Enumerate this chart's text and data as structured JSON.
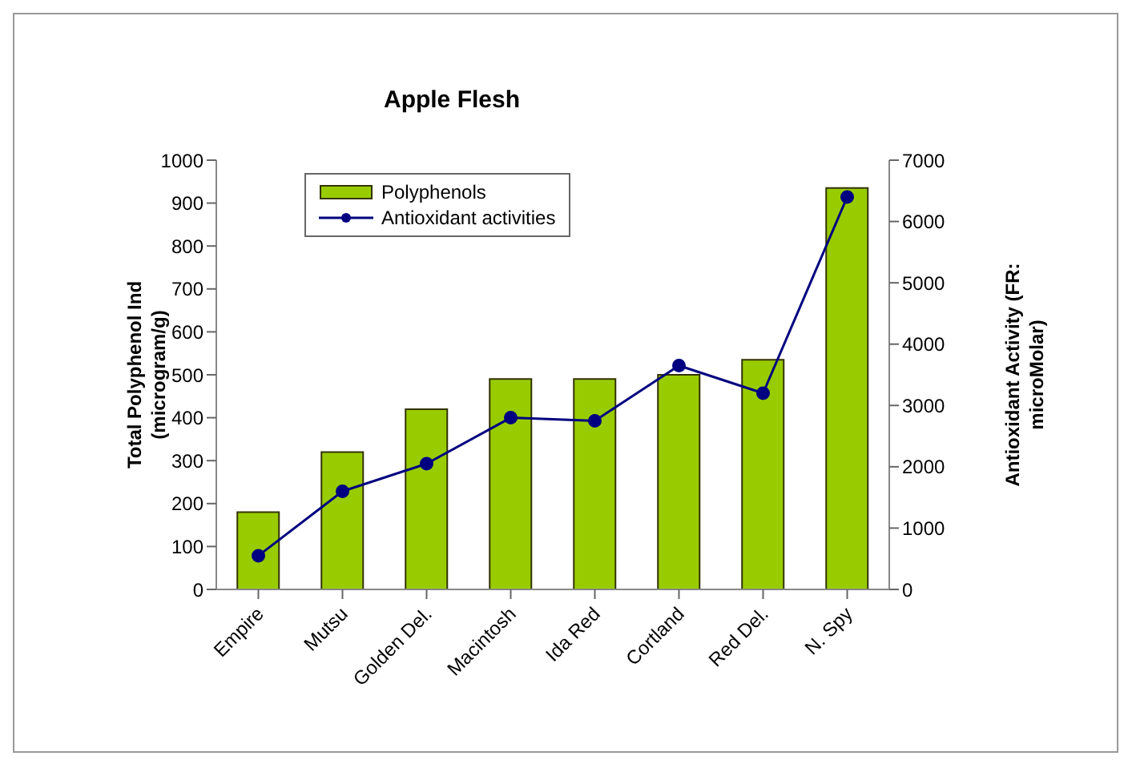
{
  "chart_data": {
    "type": "bar",
    "title": "Apple Flesh",
    "xlabel": null,
    "ylabel": "Total Polyphenol Ind\n(microgram/g)",
    "y2label": "Antioxidant Activity (FR:\nmicroMolar)",
    "categories": [
      "Empire",
      "Mutsu",
      "Golden Del.",
      "Macintosh",
      "Ida Red",
      "Cortland",
      "Red Del.",
      "N. Spy"
    ],
    "series": [
      {
        "name": "Polyphenols",
        "color": "#99cc00",
        "values": [
          180,
          320,
          420,
          490,
          490,
          500,
          535,
          935
        ]
      },
      {
        "name": "Antioxidant activities",
        "type": "line",
        "axis": "y2",
        "color": "#000080",
        "marker": "circle",
        "values": [
          550,
          1600,
          2050,
          2800,
          2750,
          3650,
          3200,
          6400
        ]
      }
    ],
    "ylim": [
      0,
      1000
    ],
    "yticks": [
      0,
      100,
      200,
      300,
      400,
      500,
      600,
      700,
      800,
      900,
      1000
    ],
    "y2lim": [
      0,
      7000
    ],
    "y2ticks": [
      0,
      1000,
      2000,
      3000,
      4000,
      5000,
      6000,
      7000
    ],
    "grid": false,
    "legend": "top left"
  }
}
